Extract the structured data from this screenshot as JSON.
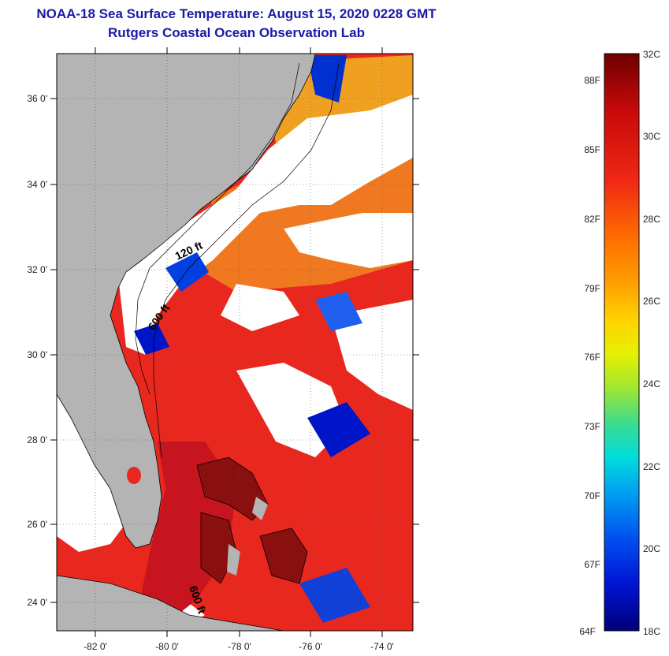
{
  "header": {
    "title": "NOAA-18 Sea Surface Temperature:  August 15, 2020 0228 GMT",
    "subtitle": "Rutgers Coastal Ocean Observation Lab"
  },
  "map": {
    "lat_labels": [
      "36 0'",
      "34 0'",
      "32 0'",
      "30 0'",
      "28 0'",
      "26 0'",
      "24 0'"
    ],
    "lon_labels": [
      "-82 0'",
      "-80 0'",
      "-78 0'",
      "-76 0'",
      "-74 0'"
    ],
    "contour_labels": [
      "120 ft",
      "600 ft",
      "600 ft"
    ],
    "colors": {
      "land": "#b4b4b4",
      "cloud": "#ffffff",
      "warm": "#e8281e",
      "hot": "#c8141e"
    }
  },
  "colorbar": {
    "celsius": [
      "32C",
      "30C",
      "28C",
      "26C",
      "24C",
      "22C",
      "20C",
      "18C"
    ],
    "fahrenheit": [
      "88F",
      "85F",
      "82F",
      "79F",
      "76F",
      "73F",
      "70F",
      "67F",
      "64F"
    ]
  }
}
